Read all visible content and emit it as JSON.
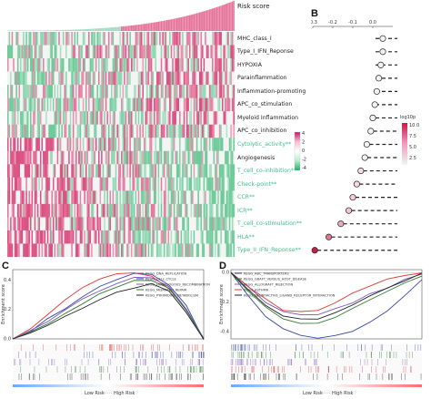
{
  "panels": {
    "b": "B",
    "c": "C",
    "d": "D"
  },
  "risk_label": "Risk score",
  "heatmap_rows": [
    {
      "label": "MHC_class_I",
      "color": "#222222"
    },
    {
      "label": "Type_I_IFN_Reponse",
      "color": "#222222"
    },
    {
      "label": "HYPOXIA",
      "color": "#222222"
    },
    {
      "label": "Parainflammation",
      "color": "#222222"
    },
    {
      "label": "Inflammation-promoting",
      "color": "#222222"
    },
    {
      "label": "APC_co_stimulation",
      "color": "#222222"
    },
    {
      "label": "Myeloid Inflammation",
      "color": "#222222"
    },
    {
      "label": "APC_co_inhibition",
      "color": "#222222"
    },
    {
      "label": "Cytolytic_activity**",
      "color": "#3bbf8a"
    },
    {
      "label": "Angiogenesis",
      "color": "#222222"
    },
    {
      "label": "T_cell_co-inhibition**",
      "color": "#3bbf8a"
    },
    {
      "label": "Check-point**",
      "color": "#3bbf8a"
    },
    {
      "label": "CCR**",
      "color": "#3bbf8a"
    },
    {
      "label": "ICR**",
      "color": "#3bbf8a"
    },
    {
      "label": "T_cell_co-stimulation**",
      "color": "#3bbf8a"
    },
    {
      "label": "HLA**",
      "color": "#3bbf8a"
    },
    {
      "label": "Type_II_IFN_Reponse**",
      "color": "#3bbf8a"
    }
  ],
  "scale": {
    "ticks": [
      "4",
      "2",
      "0",
      "-2",
      "-4"
    ],
    "colors": [
      "#c2185b",
      "#f7bcd3",
      "#ffffff",
      "#b6ecd1",
      "#1fae6a"
    ]
  },
  "chart_data": [
    {
      "type": "scatter",
      "panel": "B",
      "xlim": [
        -0.3,
        0.1
      ],
      "x_ticks": [
        "-0.3",
        "-0.2",
        "-0.1",
        "0.0"
      ],
      "x_tick_values": [
        -0.3,
        -0.2,
        -0.1,
        0.0
      ],
      "legend_title": "log10p",
      "legend_ticks": [
        "10.0",
        "7.5",
        "5.0",
        "2.5"
      ],
      "correlation": [
        0.05,
        0.05,
        0.04,
        0.03,
        0.02,
        0.01,
        0.0,
        -0.01,
        -0.03,
        -0.04,
        -0.06,
        -0.08,
        -0.1,
        -0.12,
        -0.16,
        -0.22,
        -0.29
      ],
      "log10p": [
        0.6,
        0.6,
        0.5,
        0.4,
        0.4,
        0.3,
        0.3,
        0.4,
        0.8,
        0.9,
        1.2,
        1.4,
        1.8,
        2.2,
        3.5,
        5.8,
        10.0
      ]
    },
    {
      "type": "line",
      "panel": "C",
      "ylabel": "Enrichment score",
      "xlabel_low": "Low Risk",
      "xlabel_high": "High Risk",
      "y_ticks": [
        "0.4",
        "0.2",
        "0.0"
      ],
      "series": [
        {
          "name": "KEGG_DNA_REPLICATION",
          "color": "#e53935",
          "values": [
            0.0,
            0.06,
            0.16,
            0.26,
            0.34,
            0.4,
            0.44,
            0.45,
            0.42,
            0.34,
            0.2,
            0.0
          ]
        },
        {
          "name": "KEGG_CELL_CYCLE",
          "color": "#3949ab",
          "values": [
            0.0,
            0.05,
            0.13,
            0.21,
            0.29,
            0.35,
            0.4,
            0.44,
            0.43,
            0.37,
            0.22,
            0.0
          ]
        },
        {
          "name": "KEGG_HOMOLOGOUS_RECOMBINATION",
          "color": "#7e57c2",
          "values": [
            0.0,
            0.05,
            0.12,
            0.2,
            0.27,
            0.33,
            0.38,
            0.41,
            0.41,
            0.35,
            0.2,
            0.0
          ]
        },
        {
          "name": "KEGG_MISMATCH_REPAIR",
          "color": "#2e7d32",
          "values": [
            0.0,
            0.04,
            0.1,
            0.17,
            0.24,
            0.3,
            0.35,
            0.39,
            0.4,
            0.34,
            0.19,
            0.0
          ]
        },
        {
          "name": "KEGG_PYRIMIDINE_METABOLISM",
          "color": "#212121",
          "values": [
            0.0,
            0.04,
            0.09,
            0.15,
            0.21,
            0.26,
            0.31,
            0.35,
            0.37,
            0.32,
            0.18,
            0.0
          ]
        }
      ]
    },
    {
      "type": "line",
      "panel": "D",
      "ylabel": "Enrichment score",
      "xlabel_low": "Low Risk",
      "xlabel_high": "High Risk",
      "y_ticks": [
        "0.0",
        "-0.2",
        "-0.4"
      ],
      "series": [
        {
          "name": "KEGG_ABC_TRANSPORTERS",
          "color": "#3949ab",
          "values": [
            0.0,
            -0.16,
            -0.3,
            -0.38,
            -0.42,
            -0.44,
            -0.43,
            -0.4,
            -0.34,
            -0.26,
            -0.16,
            -0.05
          ]
        },
        {
          "name": "KEGG_GRAFT_VERSUS_HOST_DISEASE",
          "color": "#2e7d32",
          "values": [
            0.0,
            -0.12,
            -0.24,
            -0.32,
            -0.35,
            -0.34,
            -0.3,
            -0.25,
            -0.19,
            -0.13,
            -0.07,
            -0.02
          ]
        },
        {
          "name": "KEGG_ALLOGRAFT_REJECTION",
          "color": "#7e57c2",
          "values": [
            0.0,
            -0.1,
            -0.2,
            -0.26,
            -0.29,
            -0.28,
            -0.25,
            -0.2,
            -0.15,
            -0.1,
            -0.05,
            -0.01
          ]
        },
        {
          "name": "KEGG_ASTHMA",
          "color": "#e53935",
          "values": [
            0.0,
            -0.09,
            -0.18,
            -0.25,
            -0.27,
            -0.25,
            -0.2,
            -0.14,
            -0.09,
            -0.05,
            -0.02,
            0.0
          ]
        },
        {
          "name": "KEGG_NEUROACTIVE_LIGAND_RECEPTOR_INTERACTION",
          "color": "#212121",
          "values": [
            0.0,
            -0.11,
            -0.22,
            -0.29,
            -0.32,
            -0.31,
            -0.27,
            -0.22,
            -0.16,
            -0.1,
            -0.05,
            -0.01
          ]
        }
      ]
    }
  ]
}
